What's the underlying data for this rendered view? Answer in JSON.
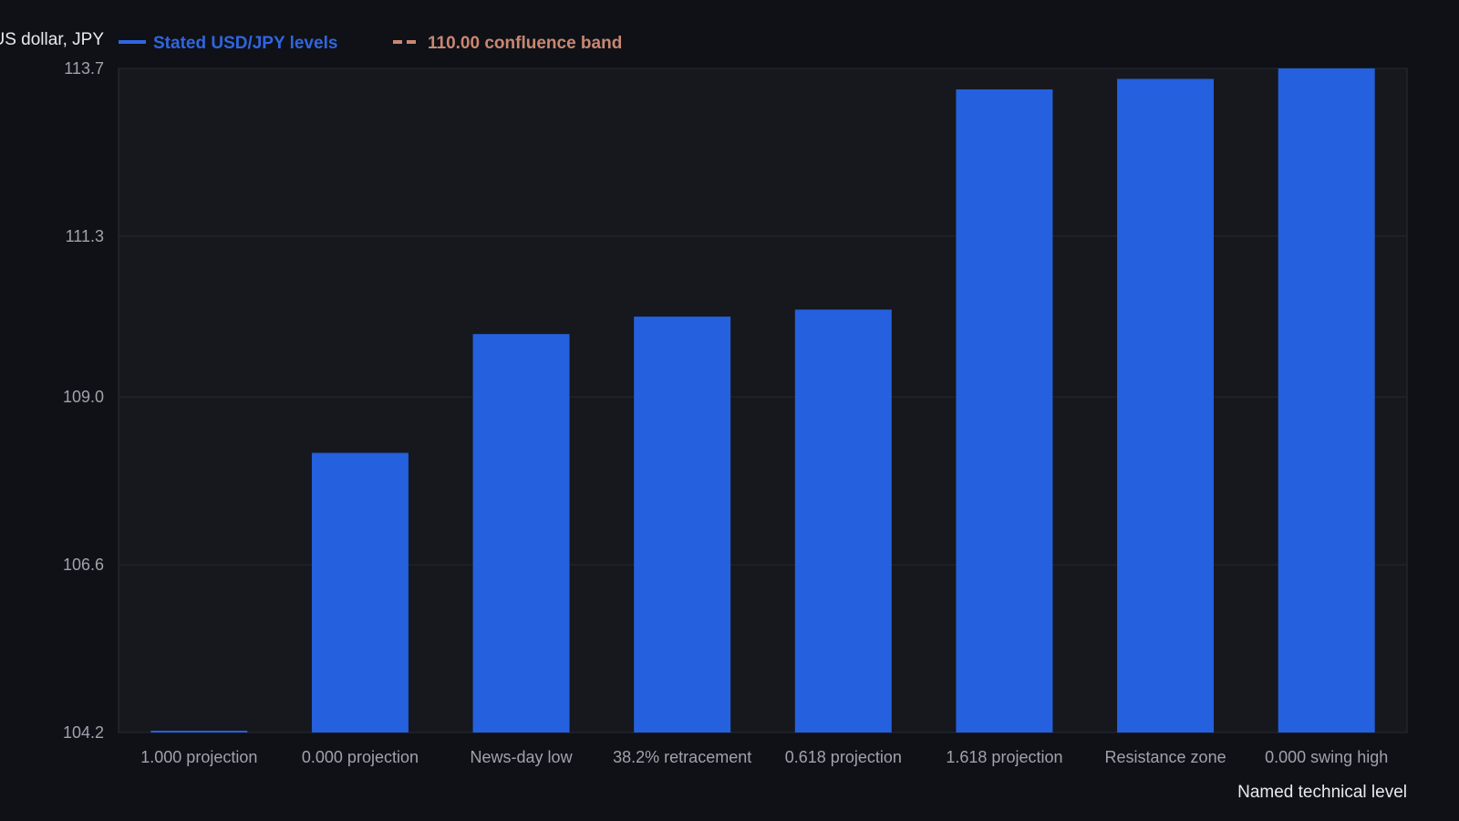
{
  "chart_data": {
    "type": "bar",
    "ylabel": "US dollar, JPY",
    "xlabel": "Named technical level",
    "categories": [
      "1.000 projection",
      "0.000 projection",
      "News-day low",
      "38.2% retracement",
      "0.618 projection",
      "1.618 projection",
      "Resistance zone",
      "0.000 swing high"
    ],
    "series": [
      {
        "name": "Stated USD/JPY levels",
        "values": [
          104.2,
          108.2,
          109.9,
          110.15,
          110.25,
          113.4,
          113.55,
          113.7
        ]
      }
    ],
    "reference_series": {
      "name": "110.00 confluence band"
    },
    "ylim": [
      104.2,
      113.7
    ],
    "yticks": [
      "104.2",
      "106.6",
      "109.0",
      "111.3",
      "113.7"
    ],
    "grid": true,
    "legend_position": "top-left",
    "colors": {
      "bar": "#2560de",
      "band": "#c98772",
      "background": "#0f1116",
      "plot_background": "#16181d",
      "grid": "#262a31"
    }
  }
}
